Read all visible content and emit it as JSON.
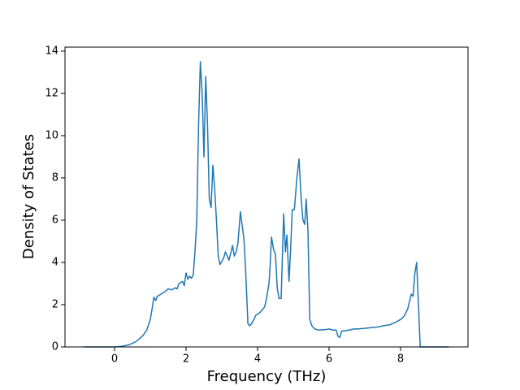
{
  "chart_data": {
    "type": "line",
    "x_label": "Frequency (THz)",
    "y_label": "Density of States",
    "x": [
      -0.85,
      0,
      0.2,
      0.4,
      0.6,
      0.8,
      0.9,
      1.0,
      1.05,
      1.1,
      1.15,
      1.2,
      1.3,
      1.4,
      1.5,
      1.6,
      1.7,
      1.75,
      1.8,
      1.9,
      1.95,
      2.0,
      2.05,
      2.1,
      2.15,
      2.2,
      2.25,
      2.3,
      2.35,
      2.4,
      2.45,
      2.5,
      2.55,
      2.6,
      2.65,
      2.7,
      2.75,
      2.8,
      2.85,
      2.9,
      2.95,
      3.05,
      3.1,
      3.2,
      3.3,
      3.35,
      3.4,
      3.45,
      3.52,
      3.62,
      3.67,
      3.73,
      3.78,
      3.83,
      3.9,
      3.95,
      4.05,
      4.15,
      4.2,
      4.25,
      4.32,
      4.35,
      4.39,
      4.45,
      4.5,
      4.55,
      4.6,
      4.66,
      4.73,
      4.78,
      4.82,
      4.88,
      4.93,
      4.97,
      5.03,
      5.1,
      5.16,
      5.22,
      5.27,
      5.32,
      5.36,
      5.41,
      5.46,
      5.52,
      5.6,
      5.7,
      5.9,
      6.0,
      6.1,
      6.2,
      6.25,
      6.3,
      6.35,
      6.5,
      6.7,
      6.8,
      7.0,
      7.2,
      7.4,
      7.5,
      7.7,
      7.9,
      8.0,
      8.1,
      8.2,
      8.3,
      8.35,
      8.4,
      8.45,
      8.55,
      9.35
    ],
    "values": [
      0,
      0,
      0.03,
      0.1,
      0.25,
      0.55,
      0.8,
      1.3,
      1.8,
      2.35,
      2.2,
      2.4,
      2.5,
      2.6,
      2.75,
      2.7,
      2.8,
      2.75,
      3.0,
      3.1,
      2.9,
      3.5,
      3.2,
      3.35,
      3.25,
      3.4,
      4.5,
      6.0,
      10.5,
      13.5,
      12.0,
      9.0,
      12.8,
      10.5,
      7.0,
      6.6,
      8.6,
      7.5,
      6.0,
      4.3,
      3.9,
      4.2,
      4.5,
      4.1,
      4.8,
      4.3,
      4.5,
      4.9,
      6.4,
      5.1,
      3.5,
      1.1,
      1.0,
      1.1,
      1.3,
      1.5,
      1.6,
      1.8,
      1.9,
      2.3,
      3.0,
      3.8,
      5.2,
      4.6,
      4.4,
      2.8,
      2.3,
      2.3,
      6.3,
      4.5,
      5.3,
      3.1,
      4.8,
      6.5,
      6.5,
      8.0,
      8.9,
      7.0,
      6.0,
      5.8,
      7.0,
      5.5,
      1.3,
      1.0,
      0.85,
      0.8,
      0.82,
      0.85,
      0.8,
      0.8,
      0.5,
      0.45,
      0.75,
      0.78,
      0.85,
      0.85,
      0.88,
      0.92,
      0.95,
      1.0,
      1.05,
      1.2,
      1.3,
      1.45,
      1.8,
      2.5,
      2.4,
      3.5,
      4.0,
      0,
      0
    ],
    "color": "#1f77b4",
    "xlim": [
      -1.386,
      9.886
    ],
    "xticks": [
      0,
      2,
      4,
      6,
      8
    ],
    "ylim": [
      0,
      14.19
    ],
    "yticks": [
      0,
      2,
      4,
      6,
      8,
      10,
      12,
      14
    ],
    "grid": false
  }
}
